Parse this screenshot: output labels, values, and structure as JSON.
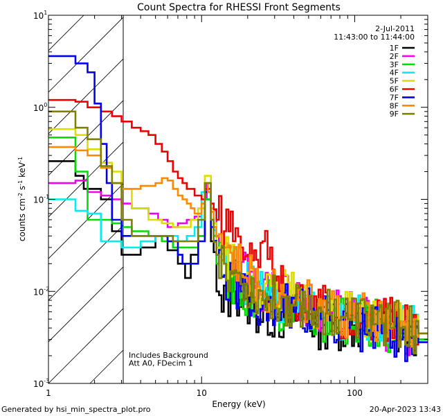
{
  "chart_data": {
    "type": "line",
    "title": "Count Spectra for RHESSI Front Segments",
    "xlabel": "Energy (keV)",
    "ylabel": "counts cm^-2 s^-1 keV^-1",
    "xscale": "log",
    "yscale": "log",
    "xlim": [
      1,
      300
    ],
    "ylim": [
      0.001,
      10
    ],
    "x_ticks": [
      {
        "value": 1,
        "label": "1"
      },
      {
        "value": 10,
        "label": "10"
      },
      {
        "value": 100,
        "label": "100"
      }
    ],
    "y_ticks": [
      {
        "value": 0.001,
        "base": "10",
        "exp": "-3"
      },
      {
        "value": 0.01,
        "base": "10",
        "exp": "-2"
      },
      {
        "value": 0.1,
        "base": "10",
        "exp": "-1"
      },
      {
        "value": 1,
        "base": "10",
        "exp": "0"
      },
      {
        "value": 10,
        "base": "10",
        "exp": "1"
      }
    ],
    "hatched_region": [
      1,
      3
    ],
    "date": "2-Jul-2011",
    "time_range": "11:43:00 to 11:44:00",
    "annotations": [
      "Includes Background",
      "Att A0, FDecim 1"
    ],
    "footer_left": "Generated by hsi_min_spectra_plot.pro",
    "footer_right": "20-Apr-2023 13:43",
    "series": [
      {
        "name": "1F",
        "color": "#000000",
        "start": 0.26,
        "points": [
          [
            1.3,
            0.26
          ],
          [
            1.5,
            0.18
          ],
          [
            1.7,
            0.13
          ],
          [
            2.2,
            0.1
          ],
          [
            2.6,
            0.045
          ],
          [
            3.0,
            0.025
          ],
          [
            4.0,
            0.03
          ],
          [
            5.0,
            0.04
          ],
          [
            6.0,
            0.028
          ],
          [
            7.0,
            0.02
          ],
          [
            7.8,
            0.014
          ],
          [
            8.5,
            0.025
          ],
          [
            9.5,
            0.04
          ],
          [
            10.5,
            0.1
          ],
          [
            11.5,
            0.035
          ],
          [
            12.5,
            0.01
          ],
          [
            13.5,
            0.006
          ],
          [
            16,
            0.01
          ],
          [
            22,
            0.006
          ],
          [
            30,
            0.005
          ],
          [
            45,
            0.005
          ],
          [
            60,
            0.004
          ],
          [
            90,
            0.004
          ],
          [
            150,
            0.0035
          ],
          [
            200,
            0.003
          ],
          [
            260,
            0.003
          ]
        ]
      },
      {
        "name": "2F",
        "color": "#ee00ee",
        "start": 0.15,
        "points": [
          [
            1.3,
            0.15
          ],
          [
            1.5,
            0.16
          ],
          [
            1.8,
            0.12
          ],
          [
            2.2,
            0.11
          ],
          [
            2.6,
            0.1
          ],
          [
            3.0,
            0.09
          ],
          [
            3.5,
            0.08
          ],
          [
            4.5,
            0.07
          ],
          [
            5.2,
            0.06
          ],
          [
            6.0,
            0.05
          ],
          [
            7.0,
            0.055
          ],
          [
            8.0,
            0.06
          ],
          [
            9.0,
            0.065
          ],
          [
            10.0,
            0.1
          ],
          [
            10.8,
            0.15
          ],
          [
            11.5,
            0.08
          ],
          [
            12.5,
            0.04
          ],
          [
            14,
            0.03
          ],
          [
            16,
            0.02
          ],
          [
            20,
            0.012
          ],
          [
            30,
            0.008
          ],
          [
            45,
            0.007
          ],
          [
            60,
            0.006
          ],
          [
            90,
            0.005
          ],
          [
            150,
            0.004
          ],
          [
            200,
            0.0035
          ],
          [
            260,
            0.003
          ]
        ]
      },
      {
        "name": "3F",
        "color": "#00dd00",
        "start": 0.47,
        "points": [
          [
            1.3,
            0.47
          ],
          [
            1.5,
            0.2
          ],
          [
            1.8,
            0.06
          ],
          [
            2.2,
            0.06
          ],
          [
            2.6,
            0.055
          ],
          [
            3.0,
            0.05
          ],
          [
            3.5,
            0.045
          ],
          [
            4.5,
            0.04
          ],
          [
            5.5,
            0.035
          ],
          [
            6.5,
            0.03
          ],
          [
            7.5,
            0.03
          ],
          [
            8.5,
            0.03
          ],
          [
            9.5,
            0.04
          ],
          [
            10.5,
            0.1
          ],
          [
            11.5,
            0.05
          ],
          [
            12.5,
            0.02
          ],
          [
            14,
            0.015
          ],
          [
            18,
            0.01
          ],
          [
            25,
            0.007
          ],
          [
            40,
            0.006
          ],
          [
            60,
            0.005
          ],
          [
            90,
            0.0045
          ],
          [
            150,
            0.004
          ],
          [
            200,
            0.0035
          ],
          [
            260,
            0.003
          ]
        ]
      },
      {
        "name": "4F",
        "color": "#00eeee",
        "start": 0.1,
        "points": [
          [
            1.3,
            0.1
          ],
          [
            1.5,
            0.075
          ],
          [
            1.8,
            0.07
          ],
          [
            2.2,
            0.035
          ],
          [
            2.6,
            0.035
          ],
          [
            3.0,
            0.03
          ],
          [
            4.0,
            0.035
          ],
          [
            5.0,
            0.04
          ],
          [
            6.0,
            0.04
          ],
          [
            7.0,
            0.035
          ],
          [
            8.0,
            0.04
          ],
          [
            9.0,
            0.05
          ],
          [
            10.0,
            0.12
          ],
          [
            10.5,
            0.15
          ],
          [
            11.5,
            0.06
          ],
          [
            12.5,
            0.025
          ],
          [
            14,
            0.02
          ],
          [
            18,
            0.012
          ],
          [
            25,
            0.008
          ],
          [
            40,
            0.007
          ],
          [
            60,
            0.006
          ],
          [
            90,
            0.005
          ],
          [
            150,
            0.0045
          ],
          [
            200,
            0.004
          ],
          [
            260,
            0.0035
          ]
        ]
      },
      {
        "name": "5F",
        "color": "#dddd00",
        "start": 0.58,
        "points": [
          [
            1.3,
            0.58
          ],
          [
            1.5,
            0.5
          ],
          [
            1.8,
            0.35
          ],
          [
            2.2,
            0.25
          ],
          [
            2.6,
            0.2
          ],
          [
            3.0,
            0.13
          ],
          [
            3.5,
            0.08
          ],
          [
            4.5,
            0.06
          ],
          [
            5.5,
            0.055
          ],
          [
            6.5,
            0.05
          ],
          [
            7.5,
            0.05
          ],
          [
            8.5,
            0.06
          ],
          [
            9.5,
            0.08
          ],
          [
            10.5,
            0.18
          ],
          [
            11.5,
            0.08
          ],
          [
            12.5,
            0.03
          ],
          [
            14,
            0.025
          ],
          [
            18,
            0.015
          ],
          [
            25,
            0.01
          ],
          [
            40,
            0.008
          ],
          [
            60,
            0.006
          ],
          [
            90,
            0.005
          ],
          [
            150,
            0.0045
          ],
          [
            200,
            0.004
          ],
          [
            260,
            0.0035
          ]
        ]
      },
      {
        "name": "6F",
        "color": "#ee0000",
        "start": 1.2,
        "points": [
          [
            1.3,
            1.2
          ],
          [
            1.5,
            1.15
          ],
          [
            1.8,
            1.0
          ],
          [
            2.2,
            0.9
          ],
          [
            2.6,
            0.8
          ],
          [
            3.0,
            0.7
          ],
          [
            3.5,
            0.6
          ],
          [
            4.0,
            0.55
          ],
          [
            4.5,
            0.5
          ],
          [
            5.0,
            0.4
          ],
          [
            5.5,
            0.33
          ],
          [
            6.0,
            0.26
          ],
          [
            6.5,
            0.2
          ],
          [
            7.0,
            0.17
          ],
          [
            7.5,
            0.15
          ],
          [
            8.0,
            0.13
          ],
          [
            9.0,
            0.11
          ],
          [
            10.0,
            0.1
          ],
          [
            10.5,
            0.13
          ],
          [
            11.5,
            0.09
          ],
          [
            12.5,
            0.06
          ],
          [
            14,
            0.045
          ],
          [
            16,
            0.035
          ],
          [
            18,
            0.03
          ],
          [
            20,
            0.025
          ],
          [
            22,
            0.028
          ],
          [
            25,
            0.035
          ],
          [
            28,
            0.03
          ],
          [
            32,
            0.01
          ],
          [
            40,
            0.007
          ],
          [
            60,
            0.006
          ],
          [
            90,
            0.005
          ],
          [
            150,
            0.0045
          ],
          [
            200,
            0.004
          ],
          [
            260,
            0.0035
          ]
        ]
      },
      {
        "name": "7F",
        "color": "#0000ee",
        "start": 3.6,
        "points": [
          [
            1.3,
            3.6
          ],
          [
            1.5,
            3.0
          ],
          [
            1.8,
            2.4
          ],
          [
            2.0,
            1.1
          ],
          [
            2.2,
            0.4
          ],
          [
            2.4,
            0.15
          ],
          [
            2.6,
            0.06
          ],
          [
            3.0,
            0.04
          ],
          [
            4.0,
            0.04
          ],
          [
            5.0,
            0.04
          ],
          [
            6.0,
            0.035
          ],
          [
            7.0,
            0.025
          ],
          [
            7.5,
            0.02
          ],
          [
            8.5,
            0.02
          ],
          [
            9.5,
            0.035
          ],
          [
            10.5,
            0.12
          ],
          [
            11.5,
            0.05
          ],
          [
            12.5,
            0.025
          ],
          [
            14,
            0.015
          ],
          [
            18,
            0.01
          ],
          [
            25,
            0.007
          ],
          [
            40,
            0.006
          ],
          [
            60,
            0.005
          ],
          [
            90,
            0.004
          ],
          [
            150,
            0.0035
          ],
          [
            200,
            0.003
          ],
          [
            260,
            0.0028
          ]
        ]
      },
      {
        "name": "8F",
        "color": "#ff8800",
        "start": 0.37,
        "points": [
          [
            1.3,
            0.37
          ],
          [
            1.5,
            0.34
          ],
          [
            1.8,
            0.3
          ],
          [
            2.2,
            0.22
          ],
          [
            2.6,
            0.15
          ],
          [
            3.0,
            0.13
          ],
          [
            3.5,
            0.13
          ],
          [
            4.0,
            0.14
          ],
          [
            4.5,
            0.14
          ],
          [
            5.0,
            0.15
          ],
          [
            5.5,
            0.17
          ],
          [
            6.0,
            0.16
          ],
          [
            6.5,
            0.13
          ],
          [
            7.0,
            0.11
          ],
          [
            7.5,
            0.1
          ],
          [
            8.0,
            0.09
          ],
          [
            8.5,
            0.08
          ],
          [
            9.0,
            0.07
          ],
          [
            9.5,
            0.07
          ],
          [
            10.0,
            0.09
          ],
          [
            10.5,
            0.15
          ],
          [
            11.0,
            0.12
          ],
          [
            12,
            0.05
          ],
          [
            14,
            0.03
          ],
          [
            18,
            0.015
          ],
          [
            25,
            0.01
          ],
          [
            40,
            0.008
          ],
          [
            60,
            0.006
          ],
          [
            90,
            0.005
          ],
          [
            150,
            0.0045
          ],
          [
            200,
            0.004
          ],
          [
            260,
            0.0035
          ]
        ]
      },
      {
        "name": "9F",
        "color": "#808000",
        "start": 0.9,
        "points": [
          [
            1.3,
            0.9
          ],
          [
            1.5,
            0.6
          ],
          [
            1.8,
            0.45
          ],
          [
            2.2,
            0.23
          ],
          [
            2.6,
            0.15
          ],
          [
            3.0,
            0.06
          ],
          [
            3.5,
            0.04
          ],
          [
            4.5,
            0.04
          ],
          [
            5.5,
            0.04
          ],
          [
            6.5,
            0.035
          ],
          [
            7.5,
            0.035
          ],
          [
            8.5,
            0.035
          ],
          [
            9.5,
            0.06
          ],
          [
            10.5,
            0.15
          ],
          [
            11.5,
            0.06
          ],
          [
            12.5,
            0.025
          ],
          [
            14,
            0.02
          ],
          [
            18,
            0.012
          ],
          [
            25,
            0.008
          ],
          [
            40,
            0.007
          ],
          [
            60,
            0.006
          ],
          [
            90,
            0.005
          ],
          [
            150,
            0.0045
          ],
          [
            200,
            0.004
          ],
          [
            260,
            0.0035
          ]
        ]
      }
    ]
  }
}
